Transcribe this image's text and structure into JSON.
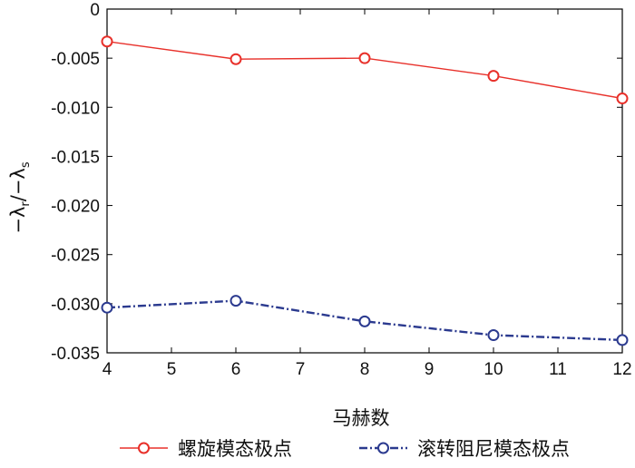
{
  "chart_data": {
    "type": "line",
    "xlabel": "马赫数",
    "ylabel": {
      "prefix": "−λ",
      "sub1": "r",
      "mid": "/−λ",
      "sub2": "s"
    },
    "xlim": [
      4,
      12
    ],
    "ylim": [
      -0.035,
      0
    ],
    "xticks": [
      4,
      5,
      6,
      7,
      8,
      9,
      10,
      11,
      12
    ],
    "yticks": [
      0,
      -0.005,
      -0.01,
      -0.015,
      -0.02,
      -0.025,
      -0.03,
      -0.035
    ],
    "ytick_labels": [
      "0",
      "-0.005",
      "-0.010",
      "-0.015",
      "-0.020",
      "-0.025",
      "-0.030",
      "-0.035"
    ],
    "x": [
      4,
      6,
      8,
      10,
      12
    ],
    "series": [
      {
        "name": "螺旋模态极点",
        "values": [
          -0.0033,
          -0.0051,
          -0.005,
          -0.0068,
          -0.0091
        ],
        "color": "#e8302a",
        "line_style": "solid",
        "marker": "open-circle"
      },
      {
        "name": "滚转阻尼模态极点",
        "values": [
          -0.0304,
          -0.0297,
          -0.0318,
          -0.0332,
          -0.0337
        ],
        "color": "#2b3a8f",
        "line_style": "dash-dot",
        "marker": "open-circle"
      }
    ],
    "grid": false,
    "legend_position": "bottom"
  }
}
